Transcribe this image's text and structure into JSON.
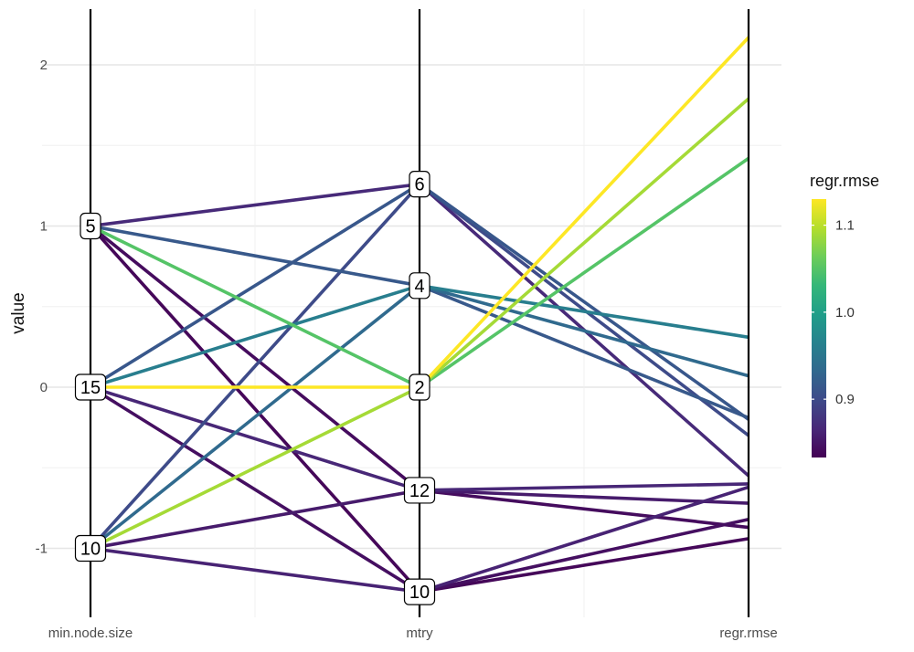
{
  "chart_data": {
    "type": "line",
    "subtype": "parallel-coordinates",
    "title": "",
    "xlabel": "",
    "ylabel": "value",
    "ylim": [
      -1.45,
      2.35
    ],
    "yticks": [
      -1,
      0,
      1,
      2
    ],
    "grid": true,
    "axes": [
      "min.node.size",
      "mtry",
      "regr.rmse"
    ],
    "axis_labels": {
      "min.node.size": [
        {
          "label": "5",
          "value": 1.0
        },
        {
          "label": "15",
          "value": 0.0
        },
        {
          "label": "10",
          "value": -1.0
        }
      ],
      "mtry": [
        {
          "label": "6",
          "value": 1.26
        },
        {
          "label": "4",
          "value": 0.63
        },
        {
          "label": "2",
          "value": 0.0
        },
        {
          "label": "12",
          "value": -0.64
        },
        {
          "label": "10",
          "value": -1.27
        }
      ]
    },
    "color_scale": {
      "variable": "regr.rmse",
      "min": 0.833,
      "max": 1.13,
      "ticks": [
        0.9,
        1.0,
        1.1
      ],
      "colors": [
        "#440154",
        "#482878",
        "#3E4A89",
        "#31688E",
        "#26828E",
        "#1F9E89",
        "#35B779",
        "#6DCD59",
        "#B4DE2C",
        "#FDE725"
      ]
    },
    "legend_position": "right",
    "lines": [
      {
        "values": [
          1.0,
          1.26,
          -0.55
        ],
        "rmse": 0.868
      },
      {
        "values": [
          1.0,
          0.63,
          -0.19
        ],
        "rmse": 0.915
      },
      {
        "values": [
          1.0,
          0.0,
          1.42
        ],
        "rmse": 1.05
      },
      {
        "values": [
          1.0,
          -0.64,
          -0.87
        ],
        "rmse": 0.842
      },
      {
        "values": [
          1.0,
          -1.27,
          -0.94
        ],
        "rmse": 0.838
      },
      {
        "values": [
          0.0,
          1.26,
          -0.2
        ],
        "rmse": 0.913
      },
      {
        "values": [
          0.0,
          0.63,
          0.31
        ],
        "rmse": 0.96
      },
      {
        "values": [
          0.0,
          0.0,
          2.17
        ],
        "rmse": 1.13
      },
      {
        "values": [
          0.0,
          -0.64,
          -0.6
        ],
        "rmse": 0.865
      },
      {
        "values": [
          0.0,
          -1.27,
          -0.82
        ],
        "rmse": 0.845
      },
      {
        "values": [
          -1.0,
          1.26,
          -0.3
        ],
        "rmse": 0.9
      },
      {
        "values": [
          -1.0,
          0.63,
          0.07
        ],
        "rmse": 0.935
      },
      {
        "values": [
          -1.0,
          0.0,
          1.79
        ],
        "rmse": 1.09
      },
      {
        "values": [
          -1.0,
          -0.64,
          -0.72
        ],
        "rmse": 0.855
      },
      {
        "values": [
          -1.0,
          -1.27,
          -0.62
        ],
        "rmse": 0.862
      }
    ]
  }
}
